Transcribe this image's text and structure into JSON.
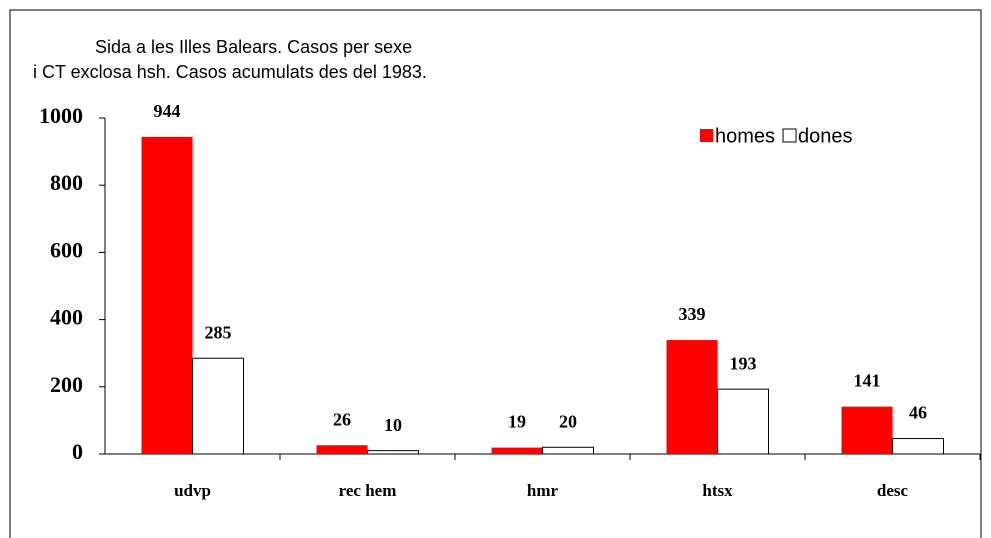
{
  "chart_data": {
    "type": "bar",
    "title": "Sida a les Illes Balears. Casos per sexe",
    "subtitle": "i CT exclosa hsh.  Casos acumulats des del 1983.",
    "categories": [
      "udvp",
      "rec hem",
      "hmr",
      "htsx",
      "desc"
    ],
    "series": [
      {
        "name": "homes",
        "color": "#ff0000",
        "values": [
          944,
          26,
          19,
          339,
          141
        ]
      },
      {
        "name": "dones",
        "color": "#ffffff",
        "values": [
          285,
          10,
          20,
          193,
          46
        ]
      }
    ],
    "ylim": [
      0,
      1000
    ],
    "yticks": [
      0,
      200,
      400,
      600,
      800,
      1000
    ],
    "legend": "top-right"
  }
}
